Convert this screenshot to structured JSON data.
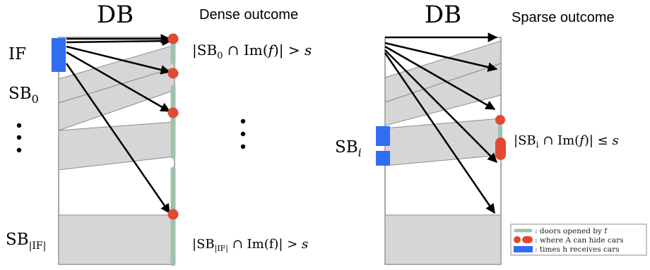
{
  "left_panel": {
    "db_title": "DB",
    "outcome_title": "Dense outcome",
    "label_if": "IF",
    "label_sb0_base": "SB",
    "label_sb0_sub": "0",
    "label_sblast_base": "SB",
    "label_sblast_sub": "|IF|",
    "condition_top": {
      "prefix": "|SB",
      "sub": "0",
      "middle": " ∩ Im(",
      "var": "f",
      "suffix": ")| > ",
      "bound": "s"
    },
    "condition_bottom": {
      "prefix": "|SB",
      "sub": "|IF|",
      "middle": " ∩ Im(f)| > ",
      "bound": "s"
    }
  },
  "right_panel": {
    "db_title": "DB",
    "outcome_title": "Sparse outcome",
    "label_sbi_base": "SB",
    "label_sbi_sub": "i",
    "condition": {
      "prefix": "|SB",
      "sub": "i",
      "middle": " ∩ Im(",
      "var": "f",
      "suffix": ")| ≤ ",
      "bound": "s"
    }
  },
  "legend": {
    "items": [
      {
        "text": ": doors opened by f",
        "color": "#9fc2ae"
      },
      {
        "text": ": where A can hide cars",
        "color": "#e04a35"
      },
      {
        "text": ": times h receives cars",
        "color": "#2f6df2"
      }
    ]
  },
  "colors": {
    "band": "#d6d6d6",
    "band_stroke": "#8c8c8c",
    "door": "#9fc2ae",
    "hide": "#e04a35",
    "receive": "#2f6df2",
    "arrow": "#000000"
  }
}
